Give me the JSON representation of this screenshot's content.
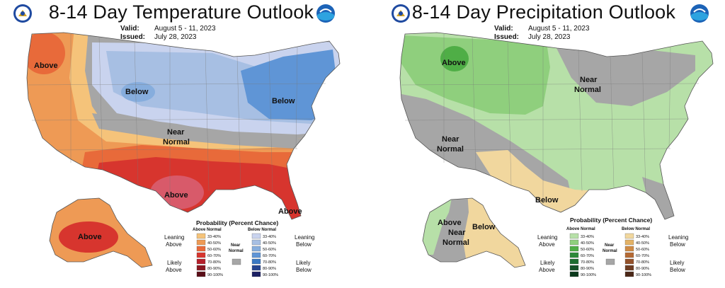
{
  "temperature": {
    "title": "8-14 Day Temperature Outlook",
    "valid_label": "Valid:",
    "valid_value": "August 5 - 11, 2023",
    "issued_label": "Issued:",
    "issued_value": "July 28, 2023",
    "region_labels": [
      "Above",
      "Below",
      "Below",
      "Near",
      "Normal",
      "Above",
      "Above",
      "Above"
    ],
    "legend": {
      "title": "Probability (Percent Chance)",
      "col_left": "Above Normal",
      "col_right": "Below Normal",
      "near": "Near",
      "near2": "Normal",
      "leaning_left": "Leaning",
      "leaning_left2": "Above",
      "likely_left": "Likely",
      "likely_left2": "Above",
      "leaning_right": "Leaning",
      "leaning_right2": "Below",
      "likely_right": "Likely",
      "likely_right2": "Below",
      "pcts": [
        "33-40%",
        "40-50%",
        "50-60%",
        "60-70%",
        "70-80%",
        "80-90%",
        "90-100%"
      ],
      "above_colors": [
        "#f5c37a",
        "#ee9a55",
        "#e86a3a",
        "#d7352e",
        "#b51f2a",
        "#8a1620",
        "#5a0e18"
      ],
      "below_colors": [
        "#c9d3ee",
        "#a7bfe3",
        "#86addd",
        "#5f95d6",
        "#3a78c2",
        "#25448f",
        "#1b1f63"
      ],
      "near_color": "#a6a6a6"
    }
  },
  "precipitation": {
    "title": "8-14 Day Precipitation Outlook",
    "valid_label": "Valid:",
    "valid_value": "August 5 - 11, 2023",
    "issued_label": "Issued:",
    "issued_value": "July 28, 2023",
    "region_labels": [
      "Above",
      "Near",
      "Normal",
      "Near",
      "Normal",
      "Below",
      "Above",
      "Near",
      "Normal",
      "Below"
    ],
    "legend": {
      "title": "Probability (Percent Chance)",
      "col_left": "Above Normal",
      "col_right": "Below Normal",
      "near": "Near",
      "near2": "Normal",
      "leaning_left": "Leaning",
      "leaning_left2": "Above",
      "likely_left": "Likely",
      "likely_left2": "Above",
      "leaning_right": "Leaning",
      "leaning_right2": "Below",
      "likely_right": "Likely",
      "likely_right2": "Below",
      "pcts": [
        "33-40%",
        "40-50%",
        "50-60%",
        "60-70%",
        "70-80%",
        "80-90%",
        "90-100%"
      ],
      "above_colors": [
        "#b7e0a8",
        "#8fcf7d",
        "#4fae46",
        "#2d8a3a",
        "#1d6d30",
        "#145227",
        "#0b3a1c"
      ],
      "below_colors": [
        "#f1d79e",
        "#e3b266",
        "#cf8a44",
        "#b46a34",
        "#93512a",
        "#6e3c22",
        "#4b2818"
      ],
      "near_color": "#a6a6a6"
    }
  }
}
